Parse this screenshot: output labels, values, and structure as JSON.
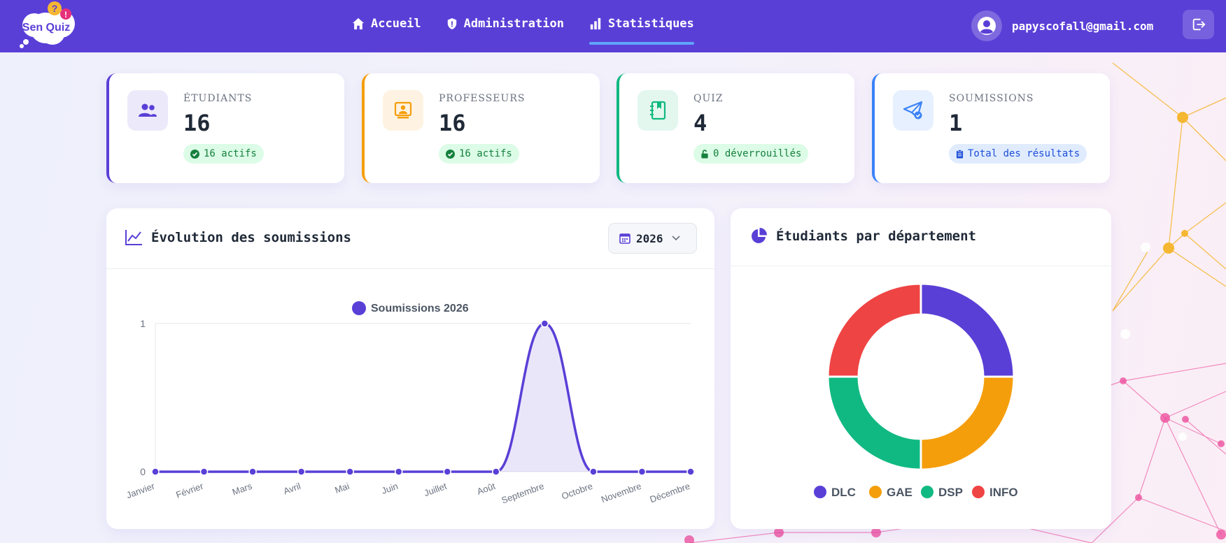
{
  "brand": {
    "logo_text": "Sen Quiz"
  },
  "nav": {
    "items": [
      {
        "label": "Accueil",
        "icon": "home-icon",
        "active": false
      },
      {
        "label": "Administration",
        "icon": "shield-icon",
        "active": false
      },
      {
        "label": "Statistiques",
        "icon": "bar-chart-icon",
        "active": true
      }
    ]
  },
  "user": {
    "email": "papyscofall@gmail.com",
    "avatar_icon": "user-circle-icon",
    "logout_icon": "logout-icon"
  },
  "stats": [
    {
      "label": "ÉTUDIANTS",
      "value": "16",
      "badge": "16 actifs",
      "icon": "users-icon",
      "accent": "#5a3fd7",
      "icon_bg": "#ece9fb",
      "badge_bg": "#dcfce7",
      "badge_color": "#15803d"
    },
    {
      "label": "PROFESSEURS",
      "value": "16",
      "badge": "16 actifs",
      "icon": "teacher-icon",
      "accent": "#f59e0b",
      "icon_bg": "#fef3e2",
      "badge_bg": "#dcfce7",
      "badge_color": "#15803d"
    },
    {
      "label": "QUIZ",
      "value": "4",
      "badge": "0 déverrouillés",
      "icon": "book-icon",
      "accent": "#10b981",
      "icon_bg": "#e3f7ef",
      "badge_bg": "#dcfce7",
      "badge_color": "#15803d"
    },
    {
      "label": "SOUMISSIONS",
      "value": "1",
      "badge": "Total des résultats",
      "icon": "paper-plane-icon",
      "accent": "#3b82f6",
      "icon_bg": "#e6f0fe",
      "badge_bg": "#e0ecfe",
      "badge_color": "#1d4ed8"
    }
  ],
  "evolution": {
    "title": "Évolution des soumissions",
    "year": "2026"
  },
  "departments": {
    "title": "Étudiants par département"
  },
  "chart_data": [
    {
      "type": "area",
      "legend": "Soumissions 2026",
      "color": "#5a3fd7",
      "categories": [
        "Janvier",
        "Février",
        "Mars",
        "Avril",
        "Mai",
        "Juin",
        "Juillet",
        "Août",
        "Septembre",
        "Octobre",
        "Novembre",
        "Décembre"
      ],
      "series": [
        {
          "name": "Soumissions 2026",
          "values": [
            0,
            0,
            0,
            0,
            0,
            0,
            0,
            0,
            1,
            0,
            0,
            0
          ]
        }
      ],
      "ylim": [
        0,
        1
      ],
      "yticks": [
        "0",
        "1"
      ],
      "grid": true,
      "legend_position": "top"
    },
    {
      "type": "pie",
      "variant": "doughnut",
      "categories": [
        "DLC",
        "GAE",
        "DSP",
        "INFO"
      ],
      "values": [
        1,
        1,
        1,
        1
      ],
      "colors": [
        "#5a3fd7",
        "#f59e0b",
        "#10b981",
        "#ef4444"
      ],
      "legend_position": "bottom"
    }
  ]
}
